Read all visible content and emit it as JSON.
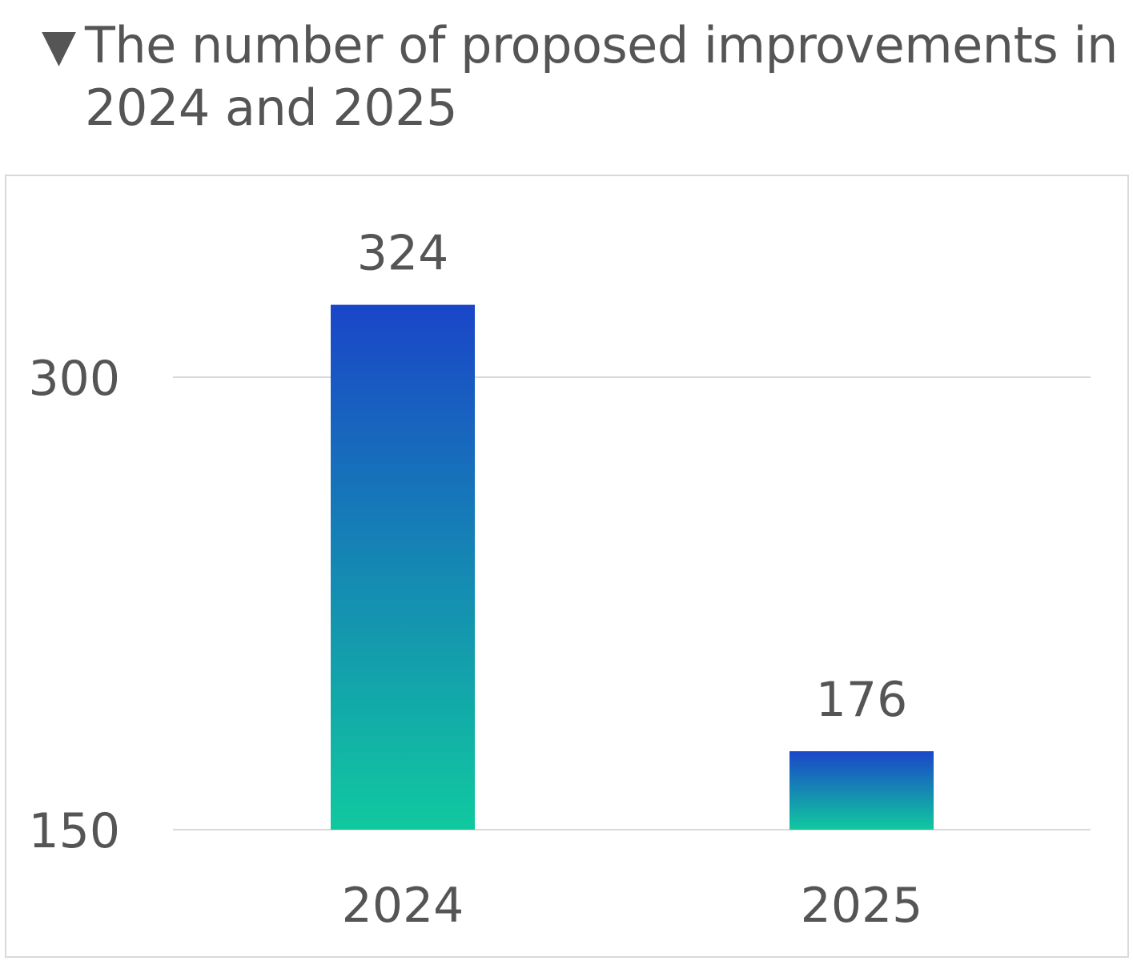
{
  "header": {
    "marker": "▼",
    "title": "The number of proposed improvements in 2024 and 2025"
  },
  "colors": {
    "bar_gradient_top": "#1a46c8",
    "bar_gradient_bottom": "#10c99f",
    "gridline": "#d9d9d9",
    "text": "#555555",
    "frame_border": "#d9d9d9"
  },
  "chart_data": {
    "type": "bar",
    "title": "The number of proposed improvements in 2024 and 2025",
    "categories": [
      "2024",
      "2025"
    ],
    "values": [
      324,
      176
    ],
    "data_labels": [
      "324",
      "176"
    ],
    "y_ticks": [
      150,
      300
    ],
    "y_tick_labels": [
      "150",
      "300"
    ],
    "ylim": [
      150,
      337
    ],
    "grid": true,
    "legend": "none",
    "xlabel": "",
    "ylabel": ""
  }
}
